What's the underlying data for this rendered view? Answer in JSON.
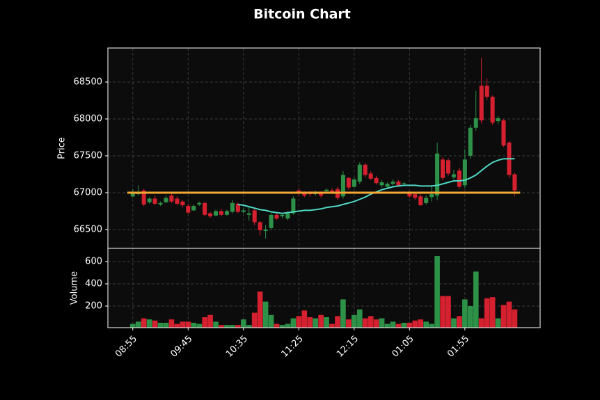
{
  "chart_data": {
    "type": "candlestick",
    "title": "Bitcoin Chart",
    "y_label": "Price",
    "y2_label": "Volume",
    "categories": [
      "08:55",
      null,
      null,
      null,
      null,
      null,
      null,
      null,
      null,
      null,
      "09:45",
      null,
      null,
      null,
      null,
      null,
      null,
      null,
      null,
      null,
      "10:35",
      null,
      null,
      null,
      null,
      null,
      null,
      null,
      null,
      null,
      "11:25",
      null,
      null,
      null,
      null,
      null,
      null,
      null,
      null,
      null,
      "12:15",
      null,
      null,
      null,
      null,
      null,
      null,
      null,
      null,
      null,
      "01:05",
      null,
      null,
      null,
      null,
      null,
      null,
      null,
      null,
      null,
      "01:55",
      null,
      null,
      null,
      null,
      null,
      null,
      null,
      null,
      null
    ],
    "xlim": [
      -4.5,
      73.6
    ],
    "ylim": [
      66245,
      68962
    ],
    "yticks": [
      66500,
      67000,
      67500,
      68000,
      68500
    ],
    "y2lim": [
      6,
      719
    ],
    "y2ticks": [
      200,
      400,
      600
    ],
    "grid": true,
    "up_color": "#2e9148",
    "down_color": "#d5202f",
    "open": [
      66950,
      66980,
      67030,
      66870,
      66920,
      66840,
      66870,
      66960,
      66920,
      66880,
      66820,
      66760,
      66840,
      66860,
      66720,
      66690,
      66750,
      66700,
      66740,
      66850,
      66740,
      66700,
      66760,
      66600,
      66480,
      66520,
      66700,
      66680,
      66650,
      66720,
      67030,
      66990,
      67000,
      66980,
      66990,
      67020,
      67030,
      67050,
      66950,
      67200,
      67080,
      67150,
      67380,
      67260,
      67200,
      67100,
      67080,
      67120,
      67150,
      67120,
      67000,
      66980,
      66950,
      66860,
      66940,
      66960,
      67450,
      67440,
      67210,
      67300,
      67100,
      67500,
      67880,
      68450,
      68450,
      68300,
      67970,
      67980,
      67680,
      67250
    ],
    "high": [
      67050,
      67100,
      67050,
      66940,
      66960,
      66880,
      66960,
      67000,
      66950,
      66900,
      66850,
      66840,
      66880,
      66880,
      66740,
      66770,
      66780,
      66770,
      66900,
      66870,
      66800,
      66800,
      66780,
      66620,
      66560,
      66720,
      66720,
      66720,
      66740,
      66950,
      67060,
      67020,
      67020,
      67030,
      67010,
      67060,
      67060,
      67080,
      67290,
      67210,
      67210,
      67410,
      67400,
      67290,
      67230,
      67170,
      67140,
      67180,
      67170,
      67150,
      67020,
      67000,
      66980,
      66960,
      67100,
      67680,
      67480,
      67470,
      67310,
      67340,
      67590,
      67920,
      68380,
      68830,
      68550,
      68320,
      68040,
      68000,
      67700,
      67270
    ],
    "low": [
      66930,
      66960,
      66820,
      66850,
      66830,
      66820,
      66860,
      66860,
      66830,
      66800,
      66710,
      66750,
      66820,
      66680,
      66660,
      66680,
      66680,
      66690,
      66720,
      66720,
      66720,
      66620,
      66560,
      66420,
      66380,
      66500,
      66630,
      66650,
      66630,
      66700,
      66960,
      66940,
      66950,
      66960,
      66930,
      67000,
      66980,
      66900,
      66920,
      67040,
      67060,
      67120,
      67210,
      67170,
      67110,
      67070,
      67060,
      67100,
      67080,
      67100,
      66930,
      66900,
      66820,
      66840,
      66880,
      66900,
      67170,
      67230,
      67180,
      67050,
      67060,
      67460,
      67840,
      67940,
      68260,
      67920,
      67930,
      67620,
      67200,
      66950
    ],
    "close": [
      66990,
      67010,
      66840,
      66920,
      66850,
      66860,
      66930,
      66880,
      66850,
      66830,
      66730,
      66820,
      66860,
      66700,
      66680,
      66750,
      66700,
      66750,
      66860,
      66740,
      66760,
      66720,
      66600,
      66490,
      66500,
      66700,
      66650,
      66700,
      66720,
      66920,
      66990,
      66960,
      66980,
      67000,
      66960,
      67040,
      67000,
      66930,
      67240,
      67070,
      67180,
      67380,
      67240,
      67190,
      67130,
      67140,
      67120,
      67150,
      67100,
      67130,
      66950,
      66930,
      66830,
      66930,
      66980,
      67530,
      67200,
      67260,
      67250,
      67080,
      67450,
      67880,
      68010,
      67980,
      68300,
      67950,
      68010,
      67640,
      67240,
      67030
    ],
    "volume": [
      40,
      60,
      90,
      80,
      70,
      50,
      50,
      80,
      40,
      60,
      60,
      50,
      40,
      100,
      120,
      60,
      30,
      30,
      30,
      30,
      80,
      30,
      140,
      330,
      240,
      120,
      40,
      30,
      40,
      90,
      110,
      160,
      100,
      90,
      120,
      100,
      40,
      110,
      260,
      80,
      120,
      170,
      90,
      110,
      80,
      90,
      40,
      60,
      40,
      50,
      50,
      70,
      80,
      60,
      40,
      650,
      290,
      290,
      90,
      110,
      260,
      200,
      510,
      90,
      270,
      280,
      90,
      210,
      240,
      170
    ],
    "moving_average": {
      "color": "#4fd8c4",
      "values": [
        null,
        null,
        null,
        null,
        null,
        null,
        null,
        null,
        null,
        null,
        null,
        null,
        null,
        null,
        null,
        null,
        null,
        null,
        null,
        66840,
        66830,
        66810,
        66790,
        66770,
        66760,
        66740,
        66730,
        66720,
        66730,
        66740,
        66750,
        66760,
        66760,
        66770,
        66780,
        66800,
        66810,
        66820,
        66840,
        66860,
        66880,
        66910,
        66940,
        66980,
        67010,
        67040,
        67060,
        67080,
        67090,
        67100,
        67100,
        67100,
        67090,
        67090,
        67090,
        67100,
        67120,
        67140,
        67160,
        67160,
        67170,
        67200,
        67240,
        67300,
        67360,
        67410,
        67440,
        67460,
        67460,
        67460
      ]
    },
    "hline": {
      "value": 67000,
      "color": "#f4a732"
    }
  }
}
